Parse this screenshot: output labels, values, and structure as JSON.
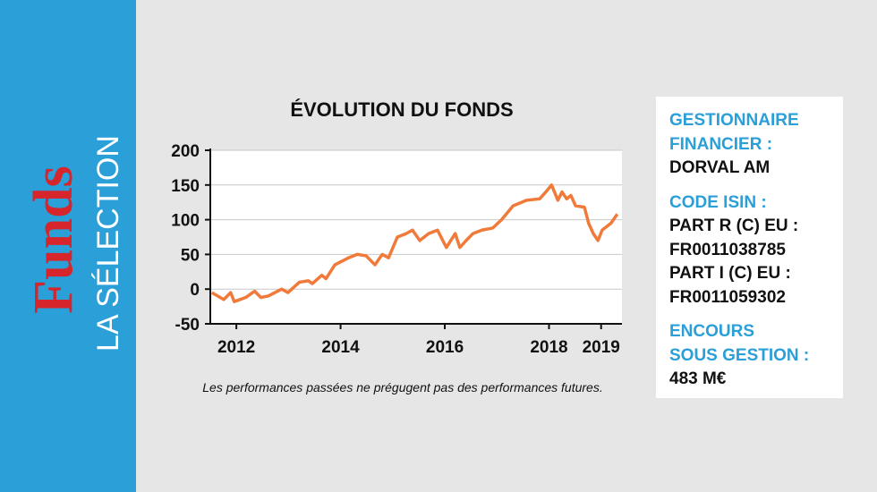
{
  "sidebar": {
    "brand": "Funds",
    "subtitle": "LA SÉLECTION"
  },
  "chart_data": {
    "type": "line",
    "title": "ÉVOLUTION DU FONDS",
    "footnote": "Les performances passées ne prégugent pas des performances futures.",
    "x": [
      2011.53,
      2011.76,
      2011.89,
      2011.96,
      2012.18,
      2012.35,
      2012.47,
      2012.61,
      2012.87,
      2012.99,
      2013.21,
      2013.38,
      2013.46,
      2013.64,
      2013.72,
      2013.89,
      2014.15,
      2014.32,
      2014.49,
      2014.66,
      2014.8,
      2014.92,
      2015.09,
      2015.26,
      2015.38,
      2015.52,
      2015.69,
      2015.86,
      2016.03,
      2016.2,
      2016.29,
      2016.41,
      2016.54,
      2016.71,
      2016.92,
      2017.09,
      2017.31,
      2017.57,
      2017.82,
      2017.94,
      2018.05,
      2018.17,
      2018.25,
      2018.34,
      2018.42,
      2018.51,
      2018.68,
      2018.76,
      2018.85,
      2018.94,
      2019.02,
      2019.19,
      2019.31
    ],
    "series": [
      {
        "color": "#f07a3a",
        "values": [
          -5,
          -15,
          -5,
          -18,
          -12,
          -3,
          -12,
          -10,
          0,
          -5,
          10,
          12,
          8,
          20,
          15,
          35,
          45,
          50,
          48,
          35,
          50,
          45,
          75,
          80,
          85,
          70,
          80,
          85,
          60,
          80,
          60,
          70,
          80,
          85,
          88,
          100,
          120,
          128,
          130,
          140,
          150,
          128,
          140,
          130,
          135,
          120,
          118,
          95,
          80,
          70,
          85,
          95,
          108
        ]
      }
    ],
    "xlim": [
      2011.5,
      2019.4
    ],
    "ylim": [
      -50,
      200
    ],
    "xticks": [
      2012,
      2014,
      2016,
      2018,
      2019
    ],
    "yticks": [
      -50,
      0,
      50,
      100,
      150,
      200
    ],
    "grid": true
  },
  "info_panel": [
    {
      "heading": [
        "GESTIONNAIRE",
        "FINANCIER :"
      ],
      "lines": [
        "DORVAL AM"
      ]
    },
    {
      "heading": [
        "CODE ISIN :"
      ],
      "lines": [
        "PART R (C) EU :",
        "FR0011038785",
        "PART I (C) EU :",
        "FR0011059302"
      ]
    },
    {
      "heading": [
        "ENCOURS",
        "SOUS GESTION :"
      ],
      "lines": [
        "483 M€"
      ]
    }
  ]
}
